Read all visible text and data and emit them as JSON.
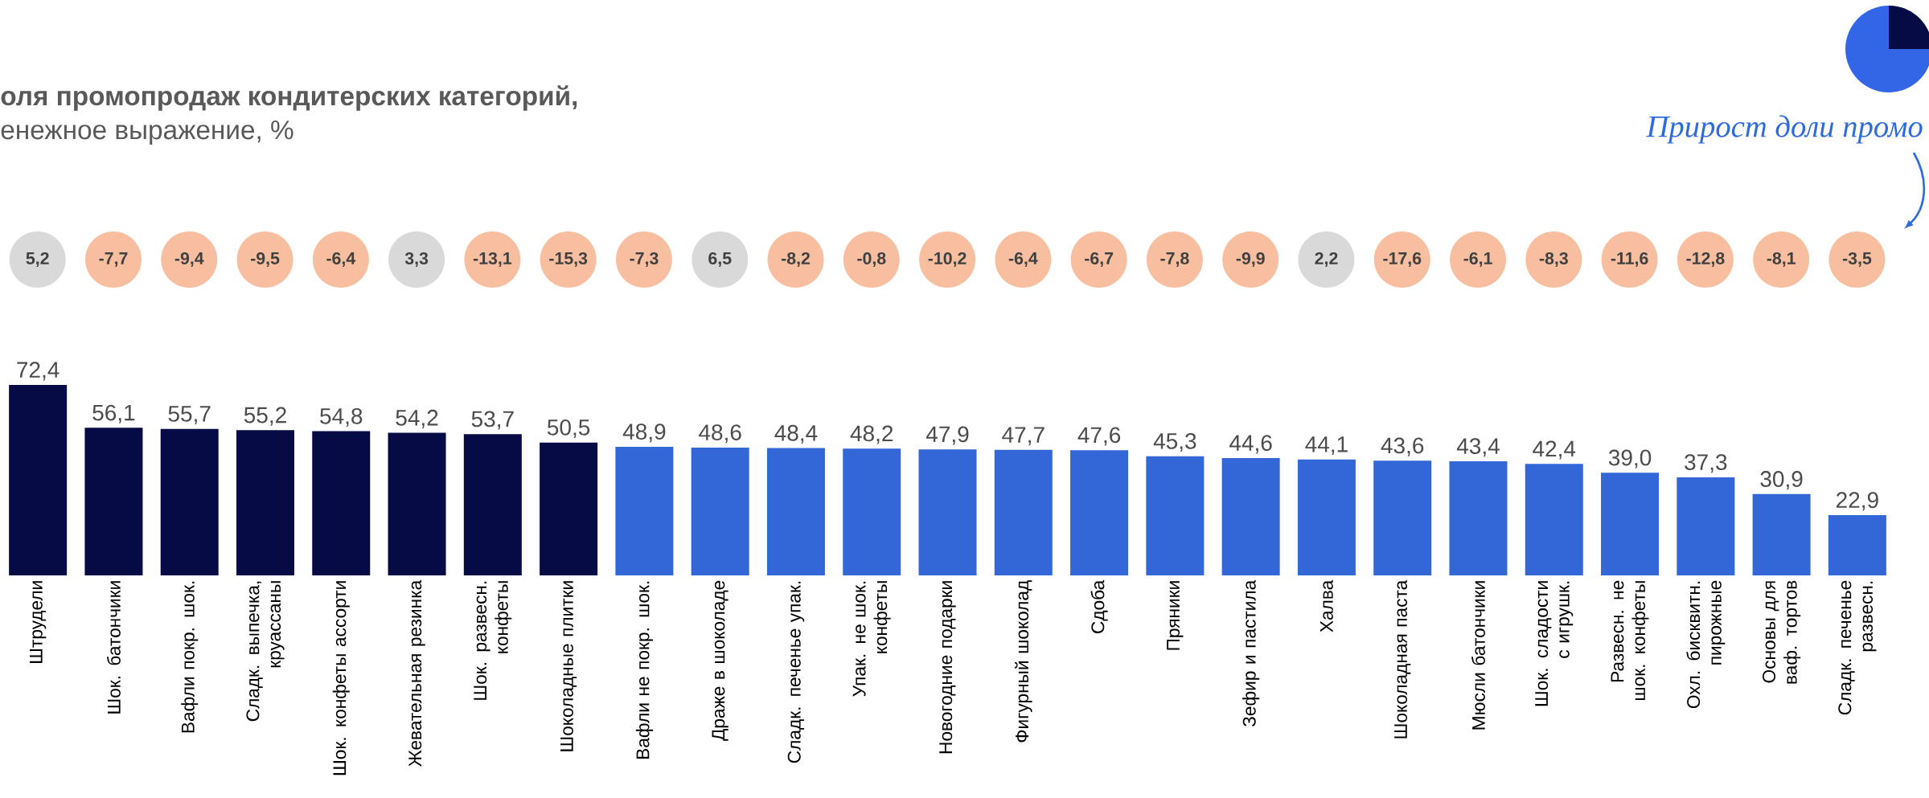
{
  "chart_data": {
    "type": "bar",
    "title": "оля промопродаж кондитерских категорий,",
    "subtitle": "енежное выражение, %",
    "categories": [
      "Штрудели",
      "Шок. батончики",
      "Вафли покр. шок.",
      "Сладк. выпечка, круассаны",
      "Шок. конфеты ассорти",
      "Жевательная резинка",
      "Шок. развесн. конфеты",
      "Шоколадные плитки",
      "Вафли не покр. шок.",
      "Драже в шоколаде",
      "Сладк. печенье упак.",
      "Упак. не шок. конфеты",
      "Новогодние подарки",
      "Фигурный шоколад",
      "Сдоба",
      "Пряники",
      "Зефир и пастила",
      "Халва",
      "Шоколадная паста",
      "Мюсли батончики",
      "Шок. сладости с игрушк.",
      "Развесн. не шок. конфеты",
      "Охл. бисквитн. пирожные",
      "Основы для ваф. тортов",
      "Сладк. печенье развесн."
    ],
    "values": [
      72.4,
      56.1,
      55.7,
      55.2,
      54.8,
      54.2,
      53.7,
      50.5,
      48.9,
      48.6,
      48.4,
      48.2,
      47.9,
      47.7,
      47.6,
      45.3,
      44.6,
      44.1,
      43.6,
      43.4,
      42.4,
      39.0,
      37.3,
      30.9,
      22.9
    ],
    "value_labels": [
      "72,4",
      "56,1",
      "55,7",
      "55,2",
      "54,8",
      "54,2",
      "53,7",
      "50,5",
      "48,9",
      "48,6",
      "48,4",
      "48,2",
      "47,9",
      "47,7",
      "47,6",
      "45,3",
      "44,6",
      "44,1",
      "43,6",
      "43,4",
      "42,4",
      "39,0",
      "37,3",
      "30,9",
      "22,9"
    ],
    "colors": [
      "#070b45",
      "#070b45",
      "#070b45",
      "#070b45",
      "#070b45",
      "#070b45",
      "#070b45",
      "#070b45",
      "#3366d6",
      "#3366d6",
      "#3366d6",
      "#3366d6",
      "#3366d6",
      "#3366d6",
      "#3366d6",
      "#3366d6",
      "#3366d6",
      "#3366d6",
      "#3366d6",
      "#3366d6",
      "#3366d6",
      "#3366d6",
      "#3366d6",
      "#3366d6",
      "#3366d6"
    ],
    "annotations": [
      "Прирост доли промо",
      "5,2",
      "-7,7",
      "-9,4",
      "-9,5",
      "-6,4",
      "3,3",
      "-13,1",
      "-15,3",
      "-7,3",
      "6,5",
      "-8,2",
      "-0,8",
      "-10,2",
      "-6,4",
      "-6,7",
      "-7,8",
      "-9,9",
      "2,2",
      "-17,6",
      "-6,1",
      "-8,3",
      "-11,6",
      "-12,8",
      "-8,1",
      "-3,5"
    ]
  }
}
